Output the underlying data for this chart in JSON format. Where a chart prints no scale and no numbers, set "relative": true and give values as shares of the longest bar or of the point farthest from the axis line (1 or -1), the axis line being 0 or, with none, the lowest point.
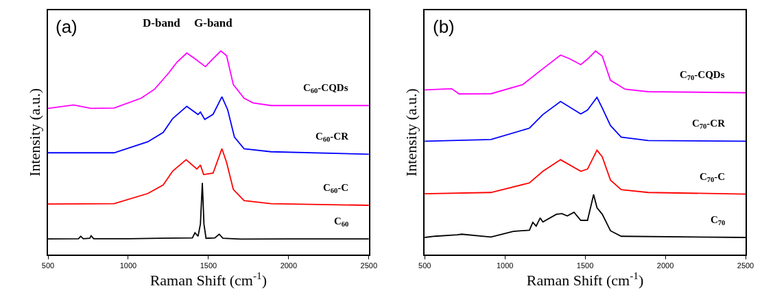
{
  "chart_data": [
    {
      "type": "line",
      "relative": true,
      "xlabel": "Raman Shift (cm$^{-1}$)",
      "ylabel": "Intensity (a.u.)",
      "xlim": [
        500,
        2500
      ],
      "xticks": [
        500,
        1000,
        1500,
        2000,
        2500
      ],
      "tick_labels": "x",
      "annotations": [
        "(a)",
        "D-band",
        "G-band"
      ],
      "series": [
        {
          "name": "C$_{60}$",
          "color": "#000000",
          "x": [
            500,
            690,
            704,
            720,
            760,
            769,
            785,
            1000,
            1200,
            1400,
            1416,
            1435,
            1450,
            1462,
            1472,
            1485,
            1540,
            1567,
            1590,
            1700,
            2000,
            2500
          ],
          "values": [
            0.077,
            0.078,
            0.09,
            0.078,
            0.08,
            0.092,
            0.078,
            0.078,
            0.08,
            0.082,
            0.107,
            0.09,
            0.15,
            0.352,
            0.15,
            0.08,
            0.082,
            0.1,
            0.08,
            0.076,
            0.077,
            0.077
          ]
        },
        {
          "name": "C$_{60}$-C",
          "color": "#ff0000",
          "x": [
            500,
            912,
            1122,
            1218,
            1277,
            1361,
            1428,
            1450,
            1470,
            1529,
            1584,
            1613,
            1655,
            1722,
            1890,
            2500
          ],
          "values": [
            0.248,
            0.25,
            0.3,
            0.342,
            0.41,
            0.466,
            0.42,
            0.44,
            0.393,
            0.4,
            0.52,
            0.453,
            0.32,
            0.265,
            0.25,
            0.242
          ]
        },
        {
          "name": "C$_{60}$-CR",
          "color": "#0000ff",
          "x": [
            500,
            912,
            1122,
            1218,
            1277,
            1365,
            1435,
            1450,
            1477,
            1529,
            1584,
            1620,
            1662,
            1722,
            1890,
            2500
          ],
          "values": [
            0.5,
            0.5,
            0.554,
            0.6,
            0.668,
            0.728,
            0.688,
            0.7,
            0.664,
            0.689,
            0.775,
            0.711,
            0.577,
            0.52,
            0.505,
            0.493
          ]
        },
        {
          "name": "C$_{60}$-CQDs",
          "color": "#ff00ff",
          "x": [
            500,
            660,
            768,
            912,
            1080,
            1164,
            1250,
            1305,
            1365,
            1414,
            1481,
            1529,
            1577,
            1613,
            1655,
            1722,
            1778,
            1890,
            2500
          ],
          "values": [
            0.718,
            0.735,
            0.718,
            0.72,
            0.768,
            0.812,
            0.89,
            0.946,
            0.99,
            0.963,
            0.923,
            0.963,
            1.0,
            0.977,
            0.835,
            0.768,
            0.745,
            0.732,
            0.732
          ]
        }
      ]
    },
    {
      "type": "line",
      "relative": true,
      "xlabel": "Raman Shift (cm$^{-1}$)",
      "ylabel": "Intensity (a.u.)",
      "xlim": [
        500,
        2500
      ],
      "xticks": [
        500,
        1000,
        1500,
        2000,
        2500
      ],
      "tick_labels": "x",
      "annotations": [
        "(b)"
      ],
      "series": [
        {
          "name": "C$_{70}$",
          "color": "#000000",
          "x": [
            500,
            563,
            702,
            731,
            913,
            1052,
            1153,
            1174,
            1195,
            1220,
            1237,
            1321,
            1355,
            1389,
            1431,
            1473,
            1515,
            1553,
            1574,
            1607,
            1658,
            1725,
            2500
          ],
          "values": [
            0.084,
            0.09,
            0.097,
            0.1,
            0.086,
            0.114,
            0.12,
            0.158,
            0.14,
            0.18,
            0.16,
            0.198,
            0.201,
            0.19,
            0.208,
            0.168,
            0.168,
            0.295,
            0.23,
            0.198,
            0.117,
            0.09,
            0.084
          ]
        },
        {
          "name": "C$_{70}$-C",
          "color": "#ff0000",
          "x": [
            500,
            913,
            1153,
            1237,
            1347,
            1473,
            1515,
            1574,
            1607,
            1658,
            1725,
            1893,
            2500
          ],
          "values": [
            0.299,
            0.305,
            0.352,
            0.409,
            0.466,
            0.409,
            0.42,
            0.513,
            0.48,
            0.366,
            0.319,
            0.305,
            0.297
          ]
        },
        {
          "name": "C$_{70}$-CR",
          "color": "#0000ff",
          "x": [
            500,
            913,
            1153,
            1237,
            1347,
            1473,
            1515,
            1574,
            1607,
            1658,
            1725,
            1893,
            2500
          ],
          "values": [
            0.557,
            0.565,
            0.621,
            0.688,
            0.752,
            0.691,
            0.71,
            0.772,
            0.72,
            0.634,
            0.577,
            0.56,
            0.557
          ]
        },
        {
          "name": "C$_{70}$-CQDs",
          "color": "#ff00ff",
          "x": [
            500,
            668,
            715,
            913,
            1111,
            1237,
            1347,
            1400,
            1473,
            1519,
            1565,
            1607,
            1658,
            1750,
            1893,
            2500
          ],
          "values": [
            0.809,
            0.815,
            0.789,
            0.79,
            0.835,
            0.913,
            0.98,
            0.963,
            0.933,
            0.963,
            1.0,
            0.975,
            0.856,
            0.812,
            0.8,
            0.795
          ]
        }
      ]
    }
  ]
}
